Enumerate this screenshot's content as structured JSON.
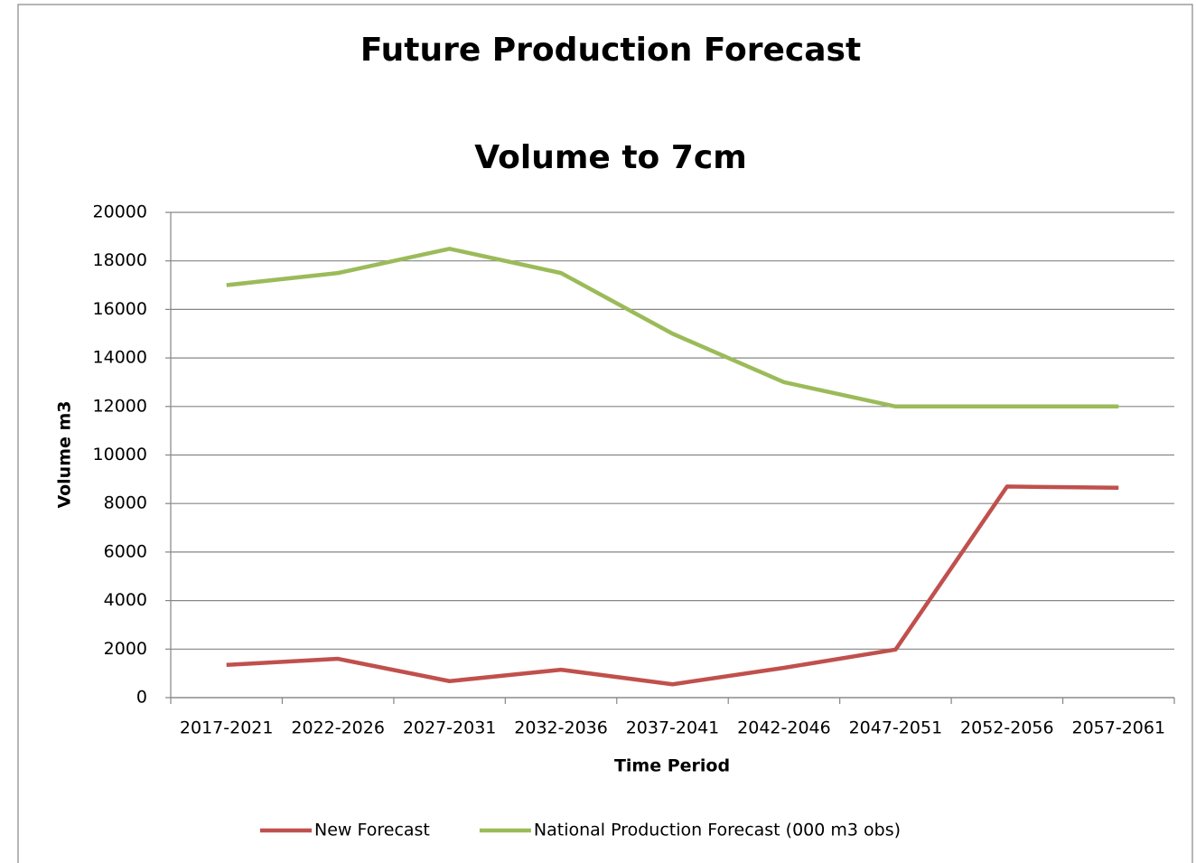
{
  "chart_data": {
    "type": "line",
    "title": "Future Production Forecast",
    "subtitle": "Volume to 7cm",
    "x_label": "Time Period",
    "y_label": "Volume m3",
    "categories": [
      "2017-2021",
      "2022-2026",
      "2027-2031",
      "2032-2036",
      "2037-2041",
      "2042-2046",
      "2047-2051",
      "2052-2056",
      "2057-2061"
    ],
    "series": [
      {
        "name": "New Forecast",
        "color": "#c0504d",
        "values": [
          1350,
          1600,
          680,
          1150,
          550,
          1230,
          1980,
          8700,
          8650
        ]
      },
      {
        "name": "National Production Forecast (000 m3 obs)",
        "color": "#9bbb59",
        "values": [
          17000,
          17500,
          18500,
          17500,
          15000,
          13000,
          12000,
          12000,
          12000
        ]
      }
    ],
    "ylim": [
      0,
      20000
    ],
    "yticks": [
      0,
      2000,
      4000,
      6000,
      8000,
      10000,
      12000,
      14000,
      16000,
      18000,
      20000
    ],
    "grid": true,
    "legend": "bottom"
  }
}
